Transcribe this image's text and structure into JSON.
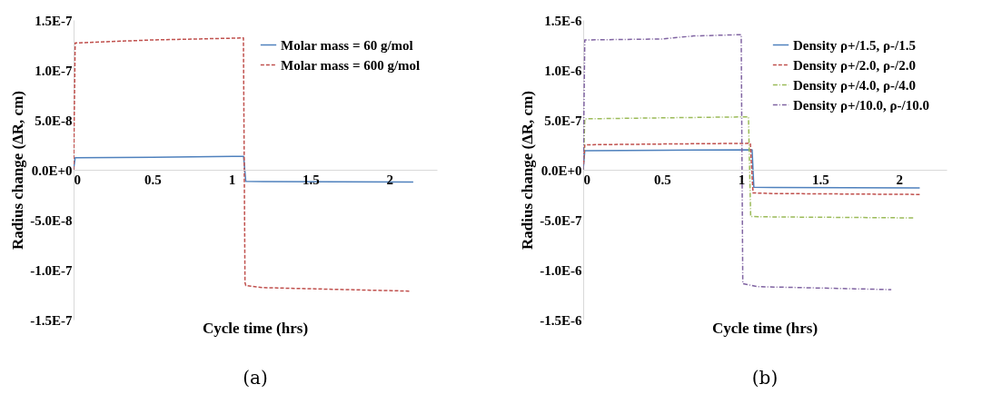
{
  "chart_data": [
    {
      "type": "line",
      "xlabel": "Cycle time (hrs)",
      "ylabel": "Radius change (ΔR, cm)",
      "annotations": [
        "(a)"
      ],
      "xlim": [
        0,
        2.3
      ],
      "ylim": [
        -1.5e-07,
        1.5e-07
      ],
      "xticks": [
        0,
        0.5,
        1,
        1.5,
        2
      ],
      "yticks": [
        {
          "value": -1.5e-07,
          "label": "-1.5E-7"
        },
        {
          "value": -1e-07,
          "label": "-1.0E-7"
        },
        {
          "value": -5e-08,
          "label": "-5.0E-8"
        },
        {
          "value": 0,
          "label": "0.0E+0"
        },
        {
          "value": 5e-08,
          "label": "5.0E-8"
        },
        {
          "value": 1e-07,
          "label": "1.0E-7"
        },
        {
          "value": 1.5e-07,
          "label": "1.5E-7"
        }
      ],
      "grid": false,
      "legend": "top right",
      "marker": "none",
      "series": [
        {
          "name": "Molar mass = 60 g/mol",
          "color": "#4f81bd",
          "line_style": "solid",
          "x": [
            0,
            0.01,
            0.5,
            1.076,
            1.09,
            1.2,
            2.15
          ],
          "values": [
            0,
            1.2e-08,
            1.25e-08,
            1.35e-08,
            -1.16e-08,
            -1.18e-08,
            -1.22e-08
          ]
        },
        {
          "name": "Molar mass = 600 g/mol",
          "color": "#c0504d",
          "line_style": "dashed",
          "x": [
            0,
            0.01,
            0.5,
            1.075,
            1.085,
            1.09,
            1.2,
            2.13
          ],
          "values": [
            0,
            1.27e-07,
            1.3e-07,
            1.32e-07,
            -1.13e-07,
            -1.16e-07,
            -1.18e-07,
            -1.215e-07
          ]
        }
      ]
    },
    {
      "type": "line",
      "xlabel": "Cycle time (hrs)",
      "ylabel": "Radius change (ΔR, cm)",
      "annotations": [
        "(b)"
      ],
      "xlim": [
        0,
        2.3
      ],
      "ylim": [
        -1.5e-06,
        1.5e-06
      ],
      "xticks": [
        0,
        0.5,
        1,
        1.5,
        2
      ],
      "yticks": [
        {
          "value": -1.5e-06,
          "label": "-1.5E-6"
        },
        {
          "value": -1e-06,
          "label": "-1.0E-6"
        },
        {
          "value": -5e-07,
          "label": "-5.0E-7"
        },
        {
          "value": 0,
          "label": "0.0E+0"
        },
        {
          "value": 5e-07,
          "label": "5.0E-7"
        },
        {
          "value": 1e-06,
          "label": "1.0E-6"
        },
        {
          "value": 1.5e-06,
          "label": "1.5E-6"
        }
      ],
      "grid": false,
      "legend": "top right",
      "marker": "none",
      "series": [
        {
          "name": "Density ρ+/1.5, ρ-/1.5",
          "color": "#4f81bd",
          "line_style": "solid",
          "x": [
            0,
            0.01,
            0.5,
            1.069,
            1.08,
            1.2,
            2.13
          ],
          "values": [
            0,
            1.9e-07,
            1.95e-07,
            2e-07,
            -1.74e-07,
            -1.78e-07,
            -1.82e-07
          ]
        },
        {
          "name": "Density ρ+/2.0, ρ-/2.0",
          "color": "#c0504d",
          "line_style": "dashed",
          "x": [
            0,
            0.01,
            0.5,
            1.058,
            1.075,
            1.2,
            2.13
          ],
          "values": [
            0,
            2.5e-07,
            2.58e-07,
            2.65e-07,
            -2.32e-07,
            -2.38e-07,
            -2.47e-07
          ]
        },
        {
          "name": "Density ρ+/4.0, ρ-/4.0",
          "color": "#9bbb59",
          "line_style": "dashdot",
          "x": [
            0,
            0.01,
            0.5,
            1.046,
            1.06,
            1.2,
            2.1
          ],
          "values": [
            0,
            5.1e-07,
            5.2e-07,
            5.3e-07,
            -4.68e-07,
            -4.72e-07,
            -4.82e-07
          ]
        },
        {
          "name": "Density ρ+/10.0, ρ-/10.0",
          "color": "#8064a2",
          "line_style": "dashdot",
          "x": [
            0,
            0.01,
            0.5,
            0.7,
            1.0,
            1.01,
            1.1,
            1.95
          ],
          "values": [
            0,
            1.3e-06,
            1.31e-06,
            1.34e-06,
            1.353e-06,
            -1.14e-06,
            -1.17e-06,
            -1.2e-06
          ]
        }
      ]
    }
  ]
}
